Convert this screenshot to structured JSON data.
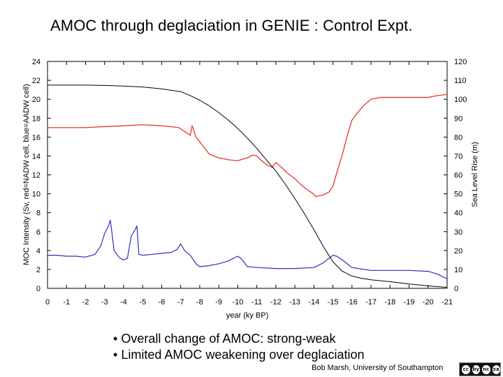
{
  "slide": {
    "title": "AMOC through deglaciation in GENIE : Control Expt.",
    "bullets": [
      "Overall change of AMOC: strong-weak",
      "Limited AMOC weakening over deglaciation"
    ],
    "credit": "Bob Marsh, University of Southampton",
    "license_badge": [
      "cc",
      "by",
      "nc",
      "sa"
    ]
  },
  "chart_data": {
    "type": "line",
    "xlabel": "year (ky BP)",
    "ylabel_left": "MOC Intensity (Sv, red=NADW cell, blue=AADW cell)",
    "ylabel_right": "Sea Level Rise (m)",
    "xlim": [
      0,
      -21
    ],
    "xticks": [
      0,
      -1,
      -2,
      -3,
      -4,
      -5,
      -6,
      -7,
      -8,
      -9,
      -10,
      -11,
      -12,
      -13,
      -14,
      -15,
      -16,
      -17,
      -18,
      -19,
      -20,
      -21
    ],
    "ylim_left": [
      0,
      24
    ],
    "yticks_left": [
      0,
      2,
      4,
      6,
      8,
      10,
      12,
      14,
      16,
      18,
      20,
      22,
      24
    ],
    "ylim_right": [
      0,
      120
    ],
    "yticks_right": [
      0,
      10,
      20,
      30,
      40,
      50,
      60,
      70,
      80,
      90,
      100,
      110,
      120
    ],
    "grid": false,
    "colors": {
      "nadw": "#e8231f",
      "aadw": "#2a2fb8",
      "sea_level": "#000000"
    },
    "series": [
      {
        "axis": "left",
        "color_key": "nadw",
        "x": [
          0,
          -1,
          -2,
          -3,
          -4,
          -5,
          -6,
          -6.9,
          -7.2,
          -7.5,
          -7.6,
          -7.8,
          -8,
          -8.5,
          -9,
          -9.5,
          -10,
          -10.5,
          -10.8,
          -11,
          -11.2,
          -11.5,
          -11.8,
          -12,
          -12.3,
          -12.6,
          -13,
          -13.3,
          -13.6,
          -13.9,
          -14.1,
          -14.5,
          -14.8,
          -15,
          -15.2,
          -15.5,
          -15.8,
          -16,
          -16.3,
          -16.6,
          -17,
          -17.5,
          -18,
          -19,
          -20,
          -20.5,
          -21
        ],
        "y": [
          17,
          17,
          17,
          17.1,
          17.2,
          17.3,
          17.2,
          17,
          16.6,
          16.2,
          17.2,
          16,
          15.5,
          14.2,
          13.8,
          13.6,
          13.5,
          13.8,
          14.1,
          14,
          13.6,
          13.1,
          12.8,
          13.3,
          12.8,
          12.2,
          11.6,
          11,
          10.5,
          10.1,
          9.7,
          9.9,
          10.2,
          10.8,
          12.2,
          14.2,
          16.5,
          17.8,
          18.6,
          19.3,
          20,
          20.2,
          20.2,
          20.2,
          20.2,
          20.4,
          20.5
        ]
      },
      {
        "axis": "left",
        "color_key": "aadw",
        "x": [
          0,
          -0.5,
          -1,
          -1.5,
          -2,
          -2.5,
          -2.8,
          -3,
          -3.2,
          -3.3,
          -3.35,
          -3.5,
          -3.8,
          -4,
          -4.2,
          -4.4,
          -4.6,
          -4.7,
          -4.8,
          -5,
          -5.5,
          -6,
          -6.5,
          -6.8,
          -7,
          -7.2,
          -7.5,
          -7.8,
          -8,
          -8.5,
          -9,
          -9.5,
          -10,
          -10.2,
          -10.5,
          -11,
          -12,
          -13,
          -14,
          -14.5,
          -14.8,
          -15,
          -15.2,
          -15.5,
          -16,
          -17,
          -18,
          -19,
          -20,
          -20.5,
          -21
        ],
        "y": [
          3.5,
          3.5,
          3.4,
          3.4,
          3.3,
          3.6,
          4.5,
          5.8,
          6.6,
          7.2,
          6.5,
          4,
          3.2,
          3,
          3.2,
          5.5,
          6.2,
          6.6,
          3.6,
          3.5,
          3.6,
          3.7,
          3.8,
          4.1,
          4.7,
          4,
          3.5,
          2.6,
          2.3,
          2.4,
          2.6,
          2.9,
          3.4,
          3.1,
          2.3,
          2.2,
          2.1,
          2.1,
          2.2,
          2.7,
          3.2,
          3.5,
          3.4,
          3,
          2.2,
          1.9,
          1.9,
          1.9,
          1.8,
          1.5,
          1
        ]
      },
      {
        "axis": "right",
        "color_key": "sea_level",
        "x": [
          0,
          -1,
          -2,
          -3,
          -4,
          -5,
          -6,
          -7,
          -7.5,
          -8,
          -8.5,
          -9,
          -9.5,
          -10,
          -10.5,
          -11,
          -11.5,
          -12,
          -12.5,
          -13,
          -13.5,
          -14,
          -14.5,
          -15,
          -15.5,
          -16,
          -16.5,
          -17,
          -18,
          -19,
          -20,
          -21
        ],
        "y": [
          107.5,
          107.5,
          107.5,
          107.3,
          107,
          106.5,
          105.5,
          104,
          102,
          99.5,
          96.5,
          93,
          89,
          84.5,
          79.5,
          74,
          68,
          62,
          55,
          47.5,
          39.5,
          31,
          22,
          14,
          9,
          6.5,
          5.3,
          4.5,
          3.5,
          2.3,
          1.3,
          0.5
        ]
      }
    ]
  }
}
